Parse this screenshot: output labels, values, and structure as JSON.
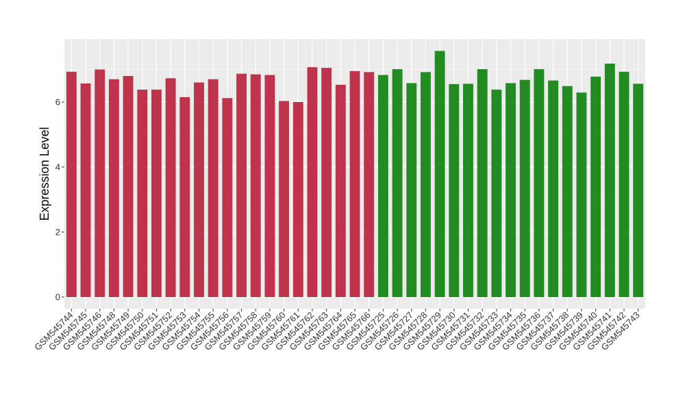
{
  "chart_data": {
    "type": "bar",
    "title": "",
    "xlabel": "",
    "ylabel": "Expression Level",
    "ylim": [
      0,
      7.85
    ],
    "yticks": [
      0,
      2,
      4,
      6
    ],
    "grid": true,
    "legend": "none",
    "colors": {
      "group1": "#c0334c",
      "group2": "#228b22",
      "panel": "#ebebeb",
      "grid": "#ffffff"
    },
    "categories": [
      "GSM545744",
      "GSM545745",
      "GSM545746",
      "GSM545748",
      "GSM545749",
      "GSM545750",
      "GSM545751",
      "GSM545752",
      "GSM545753",
      "GSM545754",
      "GSM545755",
      "GSM545756",
      "GSM545757",
      "GSM545758",
      "GSM545759",
      "GSM545760",
      "GSM545761",
      "GSM545762",
      "GSM545763",
      "GSM545764",
      "GSM545765",
      "GSM545766",
      "GSM545725",
      "GSM545726",
      "GSM545727",
      "GSM545728",
      "GSM545729",
      "GSM545730",
      "GSM545731",
      "GSM545732",
      "GSM545733",
      "GSM545734",
      "GSM545735",
      "GSM545736",
      "GSM545737",
      "GSM545738",
      "GSM545739",
      "GSM545740",
      "GSM545741",
      "GSM545742",
      "GSM545743"
    ],
    "values": [
      6.93,
      6.57,
      7.0,
      6.7,
      6.8,
      6.38,
      6.38,
      6.73,
      6.15,
      6.6,
      6.7,
      6.12,
      6.87,
      6.85,
      6.83,
      6.03,
      6.0,
      7.07,
      7.05,
      6.53,
      6.95,
      6.92,
      6.83,
      7.01,
      6.58,
      6.92,
      7.57,
      6.55,
      6.56,
      7.01,
      6.38,
      6.58,
      6.68,
      7.01,
      6.66,
      6.49,
      6.29,
      6.78,
      7.18,
      6.93,
      6.56
    ],
    "groups": [
      "group1",
      "group1",
      "group1",
      "group1",
      "group1",
      "group1",
      "group1",
      "group1",
      "group1",
      "group1",
      "group1",
      "group1",
      "group1",
      "group1",
      "group1",
      "group1",
      "group1",
      "group1",
      "group1",
      "group1",
      "group1",
      "group1",
      "group2",
      "group2",
      "group2",
      "group2",
      "group2",
      "group2",
      "group2",
      "group2",
      "group2",
      "group2",
      "group2",
      "group2",
      "group2",
      "group2",
      "group2",
      "group2",
      "group2",
      "group2",
      "group2"
    ]
  }
}
